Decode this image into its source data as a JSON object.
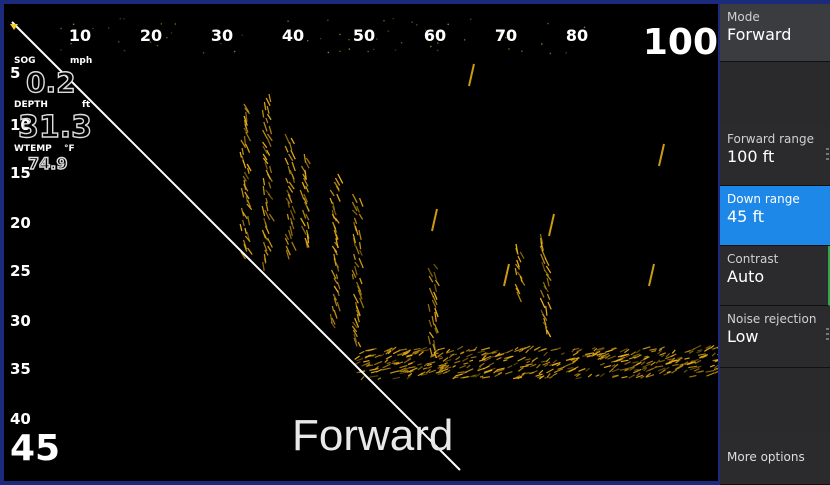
{
  "sonar": {
    "top_ticks": [
      "10",
      "20",
      "30",
      "40",
      "50",
      "60",
      "70",
      "80"
    ],
    "left_ticks": [
      "5",
      "10",
      "15",
      "20",
      "25",
      "30",
      "35",
      "40"
    ],
    "forward_range_readout": "100",
    "down_range_readout": "45",
    "mode_watermark": "Forward",
    "colors": {
      "returns": "#f0b418",
      "background": "#000000"
    }
  },
  "overlay": {
    "sog_label": "SOG",
    "sog_unit": "mph",
    "sog_value": "0.2",
    "depth_label": "DEPTH",
    "depth_unit": "ft",
    "depth_value": "31.3",
    "wtemp_label": "WTEMP",
    "wtemp_unit": "°F",
    "wtemp_value": "74.9"
  },
  "panel": {
    "mode_label": "Mode",
    "mode_value": "Forward",
    "items": [
      {
        "label": "Forward range",
        "value": "100 ft"
      },
      {
        "label": "Down range",
        "value": "45 ft"
      },
      {
        "label": "Contrast",
        "value": "Auto"
      },
      {
        "label": "Noise rejection",
        "value": "Low"
      }
    ],
    "more_options": "More options"
  }
}
